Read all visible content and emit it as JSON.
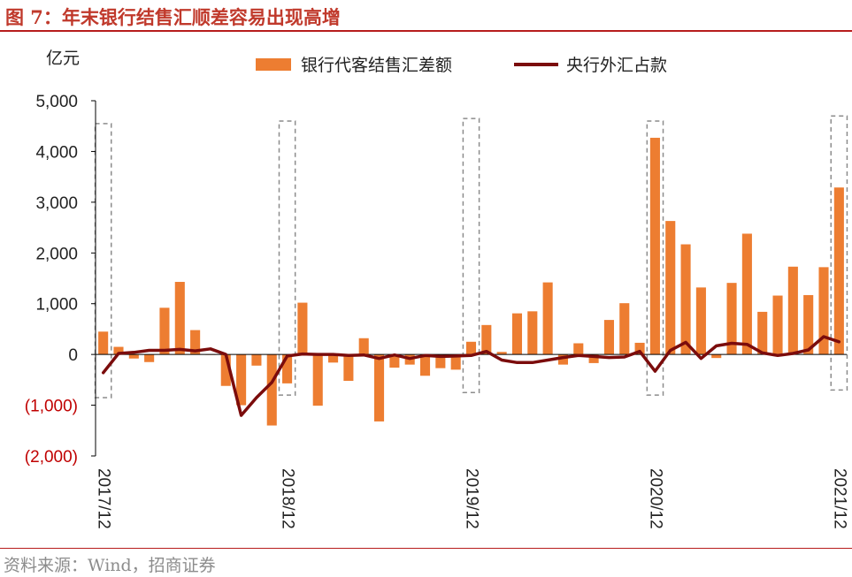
{
  "figure_title": "图 7：年末银行结售汇顺差容易出现高增",
  "source_note": "资料来源：Wind，招商证券",
  "colors": {
    "bars": "#ed7d31",
    "line": "#7b0c0c",
    "negative_tick": "#c00000",
    "highlight_box": "#8c8c8c"
  },
  "chart_data": {
    "type": "bar",
    "unit_label": "亿元",
    "ylim": [
      -2000,
      5000
    ],
    "yticks": [
      {
        "value": 5000,
        "label": "5,000"
      },
      {
        "value": 4000,
        "label": "4,000"
      },
      {
        "value": 3000,
        "label": "3,000"
      },
      {
        "value": 2000,
        "label": "2,000"
      },
      {
        "value": 1000,
        "label": "1,000"
      },
      {
        "value": 0,
        "label": "0"
      },
      {
        "value": -1000,
        "label": "(1,000)"
      },
      {
        "value": -2000,
        "label": "(2,000)"
      }
    ],
    "xtick_labels": [
      {
        "index": 0,
        "label": "2017/12"
      },
      {
        "index": 12,
        "label": "2018/12"
      },
      {
        "index": 24,
        "label": "2019/12"
      },
      {
        "index": 36,
        "label": "2020/12"
      },
      {
        "index": 48,
        "label": "2021/12"
      }
    ],
    "legend": [
      "银行代客结售汇差额",
      "央行外汇占款"
    ],
    "highlight_boxes": [
      {
        "index": 0,
        "top": 4550,
        "bottom": -850
      },
      {
        "index": 12,
        "top": 4600,
        "bottom": -800
      },
      {
        "index": 24,
        "top": 4650,
        "bottom": -750
      },
      {
        "index": 36,
        "top": 4600,
        "bottom": -800
      },
      {
        "index": 48,
        "top": 4700,
        "bottom": -700
      }
    ],
    "series": [
      {
        "name": "银行代客结售汇差额",
        "type": "bar",
        "values": [
          450,
          150,
          -80,
          -150,
          920,
          1430,
          480,
          0,
          -620,
          -1000,
          -220,
          -1400,
          -570,
          1020,
          -1010,
          -160,
          -520,
          320,
          -1320,
          -260,
          -200,
          -420,
          -270,
          -300,
          250,
          580,
          50,
          810,
          850,
          1420,
          -200,
          220,
          -170,
          680,
          1010,
          230,
          4270,
          2630,
          2170,
          1320,
          -70,
          1410,
          2380,
          840,
          1160,
          1730,
          1170,
          1720,
          3290
        ]
      },
      {
        "name": "央行外汇占款",
        "type": "line",
        "values": [
          -360,
          20,
          40,
          80,
          80,
          100,
          70,
          110,
          0,
          -1200,
          -850,
          -550,
          -30,
          10,
          0,
          0,
          -20,
          -10,
          -80,
          -10,
          -80,
          -20,
          -40,
          -30,
          -20,
          60,
          -110,
          -160,
          -160,
          -110,
          -60,
          -20,
          -40,
          -60,
          -50,
          60,
          -330,
          80,
          240,
          -80,
          170,
          220,
          200,
          30,
          -20,
          20,
          90,
          350,
          250
        ]
      }
    ]
  }
}
